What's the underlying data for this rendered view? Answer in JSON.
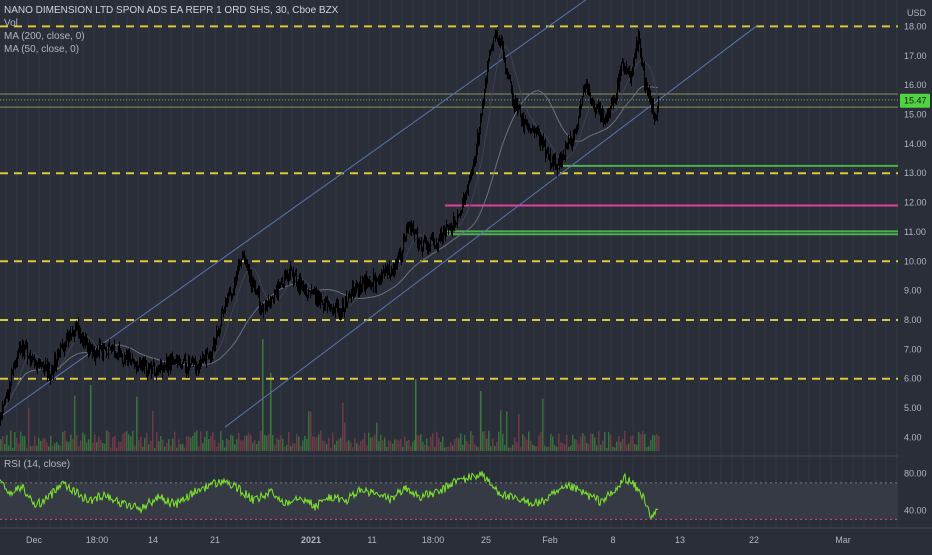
{
  "chart_data": {
    "type": "candlestick",
    "title": "NANO DIMENSION LTD SPON ADS EA REPR 1 ORD SHS, 30, Cboe BZX",
    "currency": "USD",
    "indicators": [
      "Vol",
      "MA (200, close, 0)",
      "MA (50, close, 0)"
    ],
    "rsi_label": "RSI (14, close)",
    "last_price": "15.47",
    "price_axis": {
      "ylim": [
        3.3,
        18.9
      ],
      "ticks": [
        "18.00",
        "17.00",
        "16.00",
        "15.00",
        "14.00",
        "13.00",
        "12.00",
        "11.00",
        "10.00",
        "9.00",
        "8.00",
        "7.00",
        "6.00",
        "5.00",
        "4.00"
      ]
    },
    "rsi_axis": {
      "ylim": [
        25,
        95
      ],
      "ticks": [
        "80.00",
        "40.00"
      ],
      "band": [
        30,
        70
      ]
    },
    "time_axis_ticks": [
      "Dec",
      "18:00",
      "14",
      "21",
      "2021",
      "11",
      "18:00",
      "25",
      "Feb",
      "8",
      "13",
      "22",
      "Mar"
    ],
    "horizontal_levels": [
      {
        "price": 18.0,
        "style": "dashed",
        "color": "#d6c93a"
      },
      {
        "price": 13.0,
        "style": "dashed",
        "color": "#d6c93a"
      },
      {
        "price": 10.0,
        "style": "dashed",
        "color": "#d6c93a"
      },
      {
        "price": 8.0,
        "style": "dashed",
        "color": "#d6c93a"
      },
      {
        "price": 6.0,
        "style": "dashed",
        "color": "#d6c93a"
      },
      {
        "price": 15.5,
        "style": "dotted",
        "color": "#5ac84a"
      },
      {
        "price": 15.7,
        "style": "solid",
        "color": "#8a8f5a"
      },
      {
        "price": 15.25,
        "style": "solid",
        "color": "#8a8f5a"
      }
    ],
    "zones": [
      {
        "price": 13.25,
        "from": "Feb",
        "color": "#4caf50"
      },
      {
        "price": 11.9,
        "from": "18:00",
        "color": "#e040a0"
      },
      {
        "price": 11.02,
        "from": "18:00",
        "color": "#4caf50"
      },
      {
        "price": 10.92,
        "from": "18:00",
        "color": "#4caf50"
      }
    ],
    "trend_channel": [
      {
        "from": [
          0.0,
          4.7
        ],
        "to": [
          598.0,
          19.2
        ]
      },
      {
        "from": [
          225.0,
          4.35
        ],
        "to": [
          758.0,
          18.05
        ]
      }
    ],
    "price_anchors": [
      [
        0,
        4.6
      ],
      [
        8,
        5.7
      ],
      [
        15,
        6.6
      ],
      [
        22,
        7.1
      ],
      [
        35,
        6.5
      ],
      [
        50,
        6.2
      ],
      [
        62,
        7.1
      ],
      [
        75,
        7.8
      ],
      [
        90,
        6.9
      ],
      [
        110,
        7.0
      ],
      [
        130,
        6.6
      ],
      [
        150,
        6.3
      ],
      [
        170,
        6.6
      ],
      [
        195,
        6.4
      ],
      [
        210,
        6.9
      ],
      [
        222,
        8.2
      ],
      [
        232,
        9.1
      ],
      [
        242,
        10.3
      ],
      [
        250,
        9.4
      ],
      [
        262,
        8.4
      ],
      [
        275,
        8.9
      ],
      [
        290,
        9.6
      ],
      [
        305,
        9.0
      ],
      [
        320,
        8.7
      ],
      [
        340,
        8.3
      ],
      [
        355,
        9.1
      ],
      [
        372,
        9.3
      ],
      [
        388,
        9.6
      ],
      [
        400,
        10.1
      ],
      [
        408,
        11.3
      ],
      [
        420,
        10.5
      ],
      [
        435,
        10.6
      ],
      [
        448,
        11.1
      ],
      [
        458,
        11.4
      ],
      [
        466,
        12.4
      ],
      [
        474,
        13.5
      ],
      [
        482,
        15.2
      ],
      [
        490,
        17.2
      ],
      [
        495,
        17.6
      ],
      [
        500,
        17.6
      ],
      [
        506,
        16.5
      ],
      [
        515,
        15.3
      ],
      [
        525,
        14.6
      ],
      [
        540,
        14.1
      ],
      [
        555,
        13.2
      ],
      [
        565,
        13.8
      ],
      [
        575,
        14.3
      ],
      [
        585,
        16.1
      ],
      [
        595,
        15.2
      ],
      [
        605,
        14.8
      ],
      [
        615,
        15.6
      ],
      [
        622,
        16.8
      ],
      [
        630,
        16.3
      ],
      [
        638,
        17.6
      ],
      [
        644,
        16.2
      ],
      [
        650,
        15.6
      ],
      [
        656,
        14.7
      ],
      [
        658,
        15.47
      ]
    ],
    "rsi_anchors": [
      [
        0,
        70
      ],
      [
        10,
        58
      ],
      [
        22,
        66
      ],
      [
        35,
        45
      ],
      [
        50,
        55
      ],
      [
        62,
        72
      ],
      [
        75,
        60
      ],
      [
        90,
        50
      ],
      [
        105,
        58
      ],
      [
        120,
        48
      ],
      [
        140,
        42
      ],
      [
        160,
        55
      ],
      [
        175,
        46
      ],
      [
        195,
        60
      ],
      [
        210,
        68
      ],
      [
        225,
        72
      ],
      [
        240,
        62
      ],
      [
        255,
        50
      ],
      [
        270,
        60
      ],
      [
        285,
        48
      ],
      [
        300,
        56
      ],
      [
        315,
        44
      ],
      [
        330,
        55
      ],
      [
        345,
        50
      ],
      [
        360,
        62
      ],
      [
        375,
        58
      ],
      [
        390,
        52
      ],
      [
        405,
        64
      ],
      [
        420,
        55
      ],
      [
        440,
        60
      ],
      [
        455,
        72
      ],
      [
        470,
        76
      ],
      [
        482,
        80
      ],
      [
        492,
        66
      ],
      [
        505,
        56
      ],
      [
        520,
        50
      ],
      [
        540,
        48
      ],
      [
        555,
        58
      ],
      [
        570,
        66
      ],
      [
        585,
        58
      ],
      [
        600,
        50
      ],
      [
        615,
        60
      ],
      [
        625,
        76
      ],
      [
        635,
        66
      ],
      [
        645,
        52
      ],
      [
        652,
        30
      ],
      [
        658,
        42
      ]
    ],
    "colors": {
      "background": "#2a2e39",
      "candle": "#000000",
      "ma200": "#6b7080",
      "ma50": "#3d4250",
      "volume_up": "#3b7a3b",
      "volume_down": "#7a3b4a",
      "rsi_line": "#7fe82d",
      "rsi_band": "#363a45",
      "channel": "#5a73b0",
      "price_label_bg": "#4fd43f",
      "grid": "#33373f"
    }
  }
}
